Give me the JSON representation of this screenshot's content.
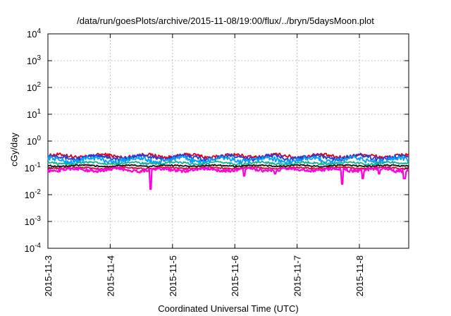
{
  "chart_data": {
    "type": "line",
    "title": "/data/run/goesPlots/archive/2015-11-08/19:00/flux/../bryn/5daysMoon.plot",
    "xlabel": "Coordinated Universal Time (UTC)",
    "ylabel": "cGy/day",
    "yscale": "log",
    "ylim_exponents": [
      -4,
      4
    ],
    "ytick_labels": [
      {
        "base": "10",
        "exp": "-4"
      },
      {
        "base": "10",
        "exp": "-3"
      },
      {
        "base": "10",
        "exp": "-2"
      },
      {
        "base": "10",
        "exp": "-1"
      },
      {
        "base": "10",
        "exp": "0"
      },
      {
        "base": "10",
        "exp": "1"
      },
      {
        "base": "10",
        "exp": "2"
      },
      {
        "base": "10",
        "exp": "3"
      },
      {
        "base": "10",
        "exp": "4"
      }
    ],
    "x_start": "2015-11-3",
    "x_end": "2015-11-8 19:00",
    "xtick_labels": [
      "2015-11-3",
      "2015-11-4",
      "2015-11-5",
      "2015-11-6",
      "2015-11-7",
      "2015-11-8"
    ],
    "grid": true,
    "series": [
      {
        "color": "#e0001a",
        "base": 0.28,
        "amplitude": 0.06,
        "dips": [],
        "phase": 0.0
      },
      {
        "color": "#1f3fdb",
        "base": 0.25,
        "amplitude": 0.06,
        "dips": [],
        "phase": 0.7
      },
      {
        "color": "#00a0ff",
        "base": 0.2,
        "amplitude": 0.06,
        "dips": [],
        "phase": 1.4
      },
      {
        "color": "#18b090",
        "base": 0.15,
        "amplitude": 0.02,
        "dips": [],
        "phase": 2.1
      },
      {
        "color": "#111111",
        "base": 0.12,
        "amplitude": 0.01,
        "dips": [],
        "phase": 2.8
      },
      {
        "color": "#d01040",
        "base": 0.1,
        "amplitude": 0.01,
        "dips": [],
        "phase": 3.5
      },
      {
        "color": "#ff00e0",
        "base": 0.085,
        "amplitude": 0.015,
        "dips": [
          [
            1.65,
            0.016
          ],
          [
            3.15,
            0.05
          ],
          [
            3.65,
            0.06
          ],
          [
            4.72,
            0.025
          ],
          [
            5.05,
            0.04
          ],
          [
            5.32,
            0.06
          ],
          [
            5.72,
            0.04
          ]
        ],
        "phase": 4.2
      }
    ]
  }
}
